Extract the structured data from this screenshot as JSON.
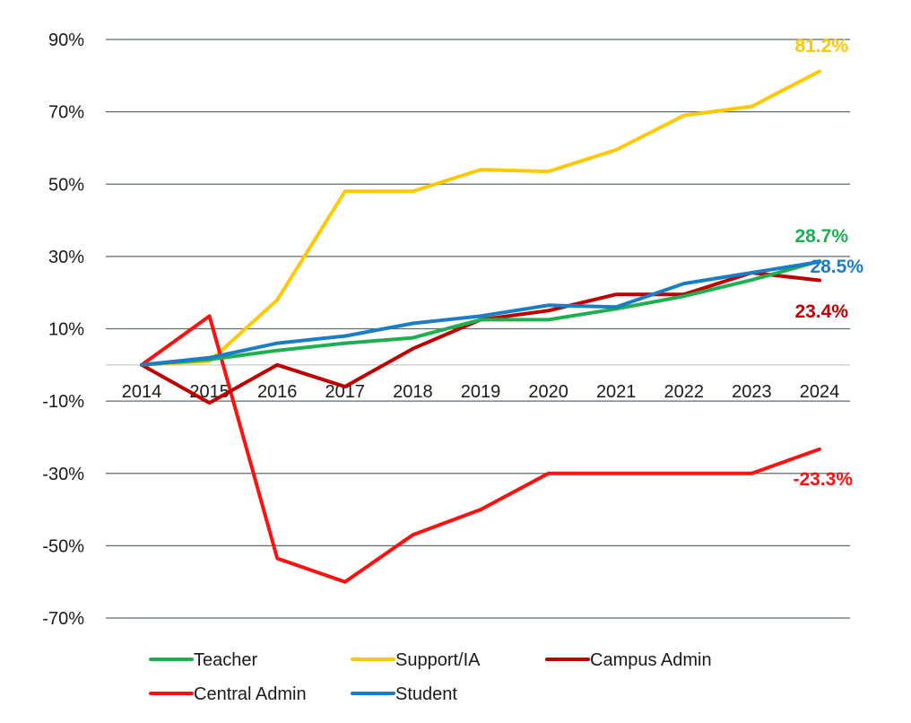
{
  "chart_data": {
    "type": "line",
    "x": [
      "2014",
      "2015",
      "2016",
      "2017",
      "2018",
      "2019",
      "2020",
      "2021",
      "2022",
      "2023",
      "2024"
    ],
    "ylim": [
      -70,
      90
    ],
    "yticks": [
      90,
      70,
      50,
      30,
      10,
      -10,
      -30,
      -50,
      -70
    ],
    "ytick_labels": [
      "90%",
      "70%",
      "50%",
      "30%",
      "10%",
      "-10%",
      "-30%",
      "-50%",
      "-70%"
    ],
    "grid": true,
    "legend_position": "bottom",
    "series": [
      {
        "name": "Teacher",
        "color": "#1DAF50",
        "values": [
          0,
          1.5,
          4,
          6,
          7.5,
          12.5,
          12.5,
          15.5,
          19,
          23.5,
          28.7
        ],
        "end_label": "28.7%"
      },
      {
        "name": "Support/IA",
        "color": "#FFC800",
        "values": [
          0,
          1,
          18,
          48,
          48,
          54,
          53.5,
          59.5,
          69,
          71.5,
          81.2
        ],
        "end_label": "81.2%"
      },
      {
        "name": "Campus Admin",
        "color": "#BE0000",
        "values": [
          0,
          -10.5,
          0,
          -6,
          4.5,
          12.5,
          15,
          19.5,
          19.5,
          25.5,
          23.4
        ],
        "end_label": "23.4%"
      },
      {
        "name": "Central Admin",
        "color": "#FF1010",
        "values": [
          0,
          13.5,
          -53.5,
          -60,
          -47,
          -40,
          -30,
          -30,
          -30,
          -30,
          -23.3
        ],
        "end_label": "-23.3%"
      },
      {
        "name": "Student",
        "color": "#1A7DC6",
        "values": [
          0,
          2,
          6,
          8,
          11.5,
          13.5,
          16.5,
          16,
          22.5,
          25.5,
          28.5
        ],
        "end_label": "28.5%"
      }
    ]
  }
}
